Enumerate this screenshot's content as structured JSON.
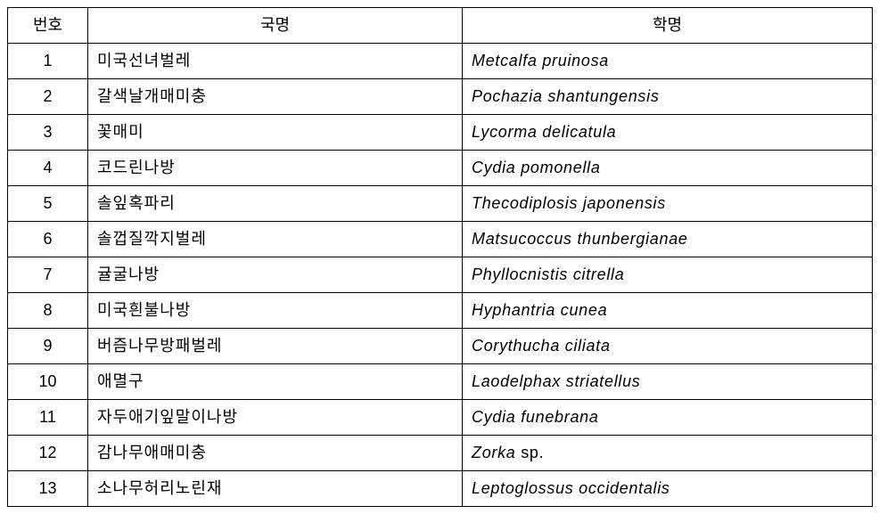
{
  "table": {
    "headers": {
      "number": "번호",
      "korean_name": "국명",
      "scientific_name": "학명"
    },
    "rows": [
      {
        "num": "1",
        "korean": "미국선녀벌레",
        "scientific": "Metcalfa pruinosa"
      },
      {
        "num": "2",
        "korean": "갈색날개매미충",
        "scientific": "Pochazia shantungensis"
      },
      {
        "num": "3",
        "korean": "꽃매미",
        "scientific": "Lycorma delicatula"
      },
      {
        "num": "4",
        "korean": "코드린나방",
        "scientific": "Cydia pomonella"
      },
      {
        "num": "5",
        "korean": "솔잎혹파리",
        "scientific": "Thecodiplosis japonensis"
      },
      {
        "num": "6",
        "korean": "솔껍질깍지벌레",
        "scientific": "Matsucoccus thunbergianae"
      },
      {
        "num": "7",
        "korean": "귤굴나방",
        "scientific": "Phyllocnistis citrella"
      },
      {
        "num": "8",
        "korean": "미국흰불나방",
        "scientific": "Hyphantria cunea"
      },
      {
        "num": "9",
        "korean": "버즘나무방패벌레",
        "scientific": "Corythucha ciliata"
      },
      {
        "num": "10",
        "korean": "애멸구",
        "scientific": "Laodelphax striatellus"
      },
      {
        "num": "11",
        "korean": "자두애기잎말이나방",
        "scientific": "Cydia funebrana"
      },
      {
        "num": "12",
        "korean": "감나무애매미충",
        "scientific": "Zorka",
        "suffix": "sp."
      },
      {
        "num": "13",
        "korean": "소나무허리노린재",
        "scientific": "Leptoglossus occidentalis"
      }
    ],
    "styling": {
      "border_color": "#000000",
      "background_color": "#ffffff",
      "font_size": 18,
      "header_align": "center",
      "num_col_width": 90,
      "korean_col_width": 420,
      "scientific_col_width": 460,
      "scientific_font_style": "italic"
    }
  }
}
